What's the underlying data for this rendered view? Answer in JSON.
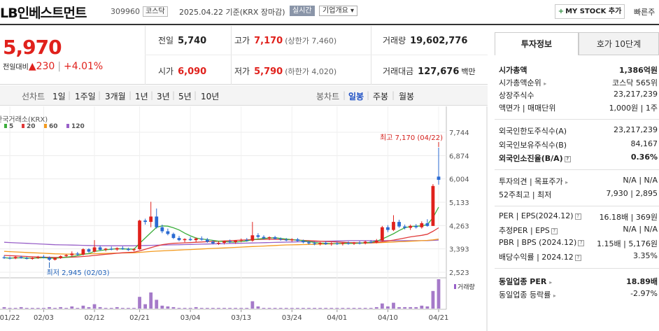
{
  "header": {
    "name": "LB인베스트먼트",
    "code": "309960",
    "market": "코스닥",
    "date_basis": "2025.04.22  기준(KRX 장마감)",
    "realtime": "실시간",
    "company_overview": "기업개요 ▾",
    "my_stock": "MY STOCK 추가",
    "quick_search": "빠른주"
  },
  "price": {
    "current": "5,970",
    "change_label": "전일대비",
    "change_value": "▲230",
    "change_pct": "+4.01%",
    "prev_close_label": "전일",
    "prev_close": "5,740",
    "high_label": "고가",
    "high": "7,170",
    "upper_limit": "(상한가 7,460)",
    "volume_label": "거래량",
    "volume": "19,602,776",
    "open_label": "시가",
    "open": "6,090",
    "low_label": "저가",
    "low": "5,790",
    "lower_limit": "(하한가 4,020)",
    "amount_label": "거래대금",
    "amount": "127,676",
    "amount_unit": "백만"
  },
  "toolbar": {
    "line_chart": "선차트",
    "periods": [
      "1일",
      "1주일",
      "3개월",
      "1년",
      "3년",
      "5년",
      "10년"
    ],
    "candle_chart": "봉차트",
    "candle_periods": [
      "일봉",
      "주봉",
      "월봉"
    ]
  },
  "chart_data": {
    "type": "candlestick",
    "title": "한국거래소(KRX)",
    "legend": [
      "5",
      "20",
      "60",
      "120"
    ],
    "ma_colors": {
      "5": "#3cae3c",
      "20": "#e03a3a",
      "60": "#f39a1f",
      "120": "#9860c8"
    },
    "y_ticks": [
      7744,
      6874,
      6004,
      5133,
      4263,
      3393,
      2523
    ],
    "ylim": [
      2523,
      7744
    ],
    "x_ticks": [
      "01/22",
      "02/03",
      "02/12",
      "02/21",
      "03/04",
      "03/13",
      "03/24",
      "04/01",
      "04/10",
      "04/21"
    ],
    "high_annotation": "최고 7,170 (04/22)",
    "low_annotation": "최저 2,945 (02/03)",
    "volume_label": "거래량",
    "candles": [
      {
        "o": 3080,
        "h": 3150,
        "l": 3020,
        "c": 3060
      },
      {
        "o": 3060,
        "h": 3110,
        "l": 3000,
        "c": 3040
      },
      {
        "o": 3040,
        "h": 3120,
        "l": 3010,
        "c": 3090
      },
      {
        "o": 3090,
        "h": 3140,
        "l": 3030,
        "c": 3050
      },
      {
        "o": 3050,
        "h": 3100,
        "l": 3000,
        "c": 3020
      },
      {
        "o": 3020,
        "h": 3080,
        "l": 2990,
        "c": 3060
      },
      {
        "o": 3060,
        "h": 3130,
        "l": 3020,
        "c": 3100
      },
      {
        "o": 3100,
        "h": 3160,
        "l": 3040,
        "c": 3070
      },
      {
        "o": 3070,
        "h": 3110,
        "l": 2945,
        "c": 2990
      },
      {
        "o": 2990,
        "h": 3080,
        "l": 2960,
        "c": 3050
      },
      {
        "o": 3050,
        "h": 3150,
        "l": 3020,
        "c": 3120
      },
      {
        "o": 3120,
        "h": 3200,
        "l": 3080,
        "c": 3160
      },
      {
        "o": 3160,
        "h": 3300,
        "l": 3100,
        "c": 3220
      },
      {
        "o": 3220,
        "h": 3280,
        "l": 3150,
        "c": 3180
      },
      {
        "o": 3180,
        "h": 3420,
        "l": 3150,
        "c": 3380
      },
      {
        "o": 3380,
        "h": 3420,
        "l": 3250,
        "c": 3290
      },
      {
        "o": 3290,
        "h": 3720,
        "l": 3260,
        "c": 3450
      },
      {
        "o": 3450,
        "h": 3520,
        "l": 3320,
        "c": 3360
      },
      {
        "o": 3360,
        "h": 3430,
        "l": 3300,
        "c": 3400
      },
      {
        "o": 3400,
        "h": 3480,
        "l": 3340,
        "c": 3370
      },
      {
        "o": 3370,
        "h": 3450,
        "l": 3320,
        "c": 3420
      },
      {
        "o": 3420,
        "h": 3490,
        "l": 3360,
        "c": 3390
      },
      {
        "o": 3390,
        "h": 3440,
        "l": 3320,
        "c": 3350
      },
      {
        "o": 3350,
        "h": 3420,
        "l": 3300,
        "c": 3380
      },
      {
        "o": 3380,
        "h": 4480,
        "l": 3360,
        "c": 4450
      },
      {
        "o": 4450,
        "h": 4520,
        "l": 4300,
        "c": 4400
      },
      {
        "o": 4400,
        "h": 5150,
        "l": 4200,
        "c": 4600
      },
      {
        "o": 4600,
        "h": 4900,
        "l": 4150,
        "c": 4200
      },
      {
        "o": 4200,
        "h": 4300,
        "l": 3980,
        "c": 4050
      },
      {
        "o": 4050,
        "h": 4150,
        "l": 3900,
        "c": 3950
      },
      {
        "o": 3950,
        "h": 4000,
        "l": 3760,
        "c": 3800
      },
      {
        "o": 3800,
        "h": 3880,
        "l": 3680,
        "c": 3720
      },
      {
        "o": 3720,
        "h": 3790,
        "l": 3640,
        "c": 3760
      },
      {
        "o": 3760,
        "h": 3840,
        "l": 3690,
        "c": 3720
      },
      {
        "o": 3720,
        "h": 3820,
        "l": 3650,
        "c": 3780
      },
      {
        "o": 3780,
        "h": 3860,
        "l": 3700,
        "c": 3740
      },
      {
        "o": 3740,
        "h": 3800,
        "l": 3620,
        "c": 3660
      },
      {
        "o": 3660,
        "h": 3720,
        "l": 3560,
        "c": 3600
      },
      {
        "o": 3600,
        "h": 3680,
        "l": 3540,
        "c": 3620
      },
      {
        "o": 3620,
        "h": 3700,
        "l": 3560,
        "c": 3680
      },
      {
        "o": 3680,
        "h": 3740,
        "l": 3600,
        "c": 3650
      },
      {
        "o": 3650,
        "h": 3720,
        "l": 3580,
        "c": 3700
      },
      {
        "o": 3700,
        "h": 3780,
        "l": 3640,
        "c": 3730
      },
      {
        "o": 3730,
        "h": 3800,
        "l": 3660,
        "c": 3700
      },
      {
        "o": 3700,
        "h": 4400,
        "l": 3660,
        "c": 3900
      },
      {
        "o": 3900,
        "h": 3980,
        "l": 3780,
        "c": 3840
      },
      {
        "o": 3840,
        "h": 3900,
        "l": 3740,
        "c": 3790
      },
      {
        "o": 3790,
        "h": 3860,
        "l": 3720,
        "c": 3830
      },
      {
        "o": 3830,
        "h": 3880,
        "l": 3740,
        "c": 3770
      },
      {
        "o": 3770,
        "h": 3820,
        "l": 3700,
        "c": 3740
      },
      {
        "o": 3740,
        "h": 3800,
        "l": 3680,
        "c": 3720
      },
      {
        "o": 3720,
        "h": 3790,
        "l": 3660,
        "c": 3750
      },
      {
        "o": 3750,
        "h": 3800,
        "l": 3660,
        "c": 3690
      },
      {
        "o": 3690,
        "h": 3740,
        "l": 3600,
        "c": 3640
      },
      {
        "o": 3640,
        "h": 3700,
        "l": 3560,
        "c": 3600
      },
      {
        "o": 3600,
        "h": 3660,
        "l": 3530,
        "c": 3580
      },
      {
        "o": 3580,
        "h": 3650,
        "l": 3520,
        "c": 3620
      },
      {
        "o": 3620,
        "h": 3680,
        "l": 3540,
        "c": 3570
      },
      {
        "o": 3570,
        "h": 3640,
        "l": 3510,
        "c": 3600
      },
      {
        "o": 3600,
        "h": 3660,
        "l": 3540,
        "c": 3580
      },
      {
        "o": 3580,
        "h": 3640,
        "l": 3520,
        "c": 3610
      },
      {
        "o": 3610,
        "h": 3670,
        "l": 3550,
        "c": 3590
      },
      {
        "o": 3590,
        "h": 3650,
        "l": 3540,
        "c": 3620
      },
      {
        "o": 3620,
        "h": 3680,
        "l": 3560,
        "c": 3600
      },
      {
        "o": 3600,
        "h": 3700,
        "l": 3560,
        "c": 3660
      },
      {
        "o": 3660,
        "h": 3720,
        "l": 3600,
        "c": 3640
      },
      {
        "o": 3640,
        "h": 3760,
        "l": 3600,
        "c": 3700
      },
      {
        "o": 3700,
        "h": 4250,
        "l": 3680,
        "c": 4200
      },
      {
        "o": 4200,
        "h": 4280,
        "l": 4020,
        "c": 4100
      },
      {
        "o": 4100,
        "h": 4650,
        "l": 4060,
        "c": 4400
      },
      {
        "o": 4400,
        "h": 4480,
        "l": 4180,
        "c": 4230
      },
      {
        "o": 4230,
        "h": 4300,
        "l": 4120,
        "c": 4180
      },
      {
        "o": 4180,
        "h": 4300,
        "l": 4100,
        "c": 4250
      },
      {
        "o": 4250,
        "h": 4320,
        "l": 4150,
        "c": 4200
      },
      {
        "o": 4200,
        "h": 4420,
        "l": 4150,
        "c": 4350
      },
      {
        "o": 4350,
        "h": 4500,
        "l": 4220,
        "c": 4250
      },
      {
        "o": 4250,
        "h": 5810,
        "l": 4250,
        "c": 5740
      },
      {
        "o": 6090,
        "h": 7170,
        "l": 5790,
        "c": 5970
      }
    ],
    "ma5": [
      3060,
      3050,
      3055,
      3060,
      3050,
      3045,
      3055,
      3065,
      3050,
      3045,
      3060,
      3080,
      3110,
      3140,
      3190,
      3220,
      3300,
      3330,
      3360,
      3380,
      3400,
      3390,
      3390,
      3380,
      3600,
      3800,
      4000,
      4200,
      4250,
      4240,
      4180,
      4100,
      3980,
      3880,
      3800,
      3760,
      3740,
      3710,
      3680,
      3670,
      3650,
      3650,
      3670,
      3690,
      3740,
      3760,
      3780,
      3800,
      3810,
      3780,
      3760,
      3740,
      3720,
      3700,
      3670,
      3630,
      3610,
      3600,
      3590,
      3590,
      3600,
      3600,
      3600,
      3610,
      3620,
      3640,
      3680,
      3760,
      3860,
      3960,
      4080,
      4180,
      4230,
      4240,
      4250,
      4300,
      4560,
      4950
    ],
    "ma20": [
      3150,
      3140,
      3130,
      3120,
      3110,
      3100,
      3090,
      3085,
      3080,
      3075,
      3075,
      3080,
      3085,
      3095,
      3110,
      3125,
      3150,
      3170,
      3190,
      3210,
      3230,
      3250,
      3260,
      3270,
      3320,
      3380,
      3440,
      3500,
      3550,
      3580,
      3600,
      3610,
      3620,
      3630,
      3640,
      3650,
      3660,
      3670,
      3680,
      3690,
      3700,
      3710,
      3720,
      3730,
      3740,
      3745,
      3750,
      3750,
      3750,
      3745,
      3740,
      3730,
      3720,
      3710,
      3700,
      3690,
      3680,
      3670,
      3660,
      3650,
      3640,
      3630,
      3625,
      3620,
      3620,
      3625,
      3635,
      3660,
      3690,
      3720,
      3760,
      3800,
      3840,
      3870,
      3900,
      3940,
      4050,
      4180
    ],
    "ma60": [
      3300,
      3290,
      3280,
      3270,
      3260,
      3250,
      3240,
      3230,
      3220,
      3210,
      3205,
      3200,
      3200,
      3200,
      3205,
      3210,
      3215,
      3220,
      3225,
      3230,
      3235,
      3240,
      3245,
      3250,
      3265,
      3280,
      3295,
      3310,
      3320,
      3330,
      3340,
      3350,
      3360,
      3370,
      3380,
      3390,
      3400,
      3410,
      3420,
      3430,
      3440,
      3450,
      3460,
      3470,
      3480,
      3490,
      3500,
      3510,
      3520,
      3530,
      3540,
      3545,
      3550,
      3555,
      3560,
      3565,
      3570,
      3575,
      3580,
      3585,
      3590,
      3595,
      3600,
      3605,
      3610,
      3615,
      3620,
      3630,
      3640,
      3650,
      3660,
      3670,
      3680,
      3690,
      3700,
      3710,
      3730,
      3760
    ],
    "ma120": [
      3640,
      3630,
      3620,
      3610,
      3600,
      3590,
      3580,
      3570,
      3560,
      3550,
      3545,
      3540,
      3535,
      3530,
      3525,
      3520,
      3515,
      3510,
      3510,
      3510,
      3510,
      3510,
      3510,
      3510,
      3515,
      3520,
      3525,
      3530,
      3535,
      3540,
      3545,
      3550,
      3555,
      3560,
      3565,
      3570,
      3575,
      3580,
      3585,
      3590,
      3595,
      3600,
      3605,
      3610,
      3615,
      3620,
      3625,
      3630,
      3635,
      3640,
      3645,
      3650,
      3655,
      3660,
      3665,
      3670,
      3675,
      3680,
      3685,
      3690,
      3695,
      3700,
      3700,
      3700,
      3700,
      3700,
      3700,
      3700,
      3700,
      3700,
      3700,
      3700,
      3700,
      3700,
      3700,
      3700,
      3710,
      3720
    ],
    "volume": [
      2,
      1,
      1,
      2,
      1,
      1,
      1,
      1,
      2,
      1,
      2,
      1,
      3,
      1,
      4,
      2,
      6,
      2,
      1,
      1,
      2,
      1,
      1,
      1,
      16,
      6,
      22,
      12,
      4,
      3,
      2,
      1,
      1,
      1,
      2,
      1,
      1,
      1,
      1,
      1,
      1,
      1,
      1,
      1,
      10,
      3,
      1,
      1,
      1,
      1,
      1,
      1,
      1,
      1,
      1,
      1,
      1,
      1,
      1,
      1,
      1,
      1,
      1,
      1,
      1,
      1,
      2,
      7,
      3,
      8,
      2,
      2,
      2,
      2,
      4,
      3,
      24,
      40
    ]
  },
  "investment": {
    "tab_active": "투자정보",
    "tab_other": "호가 10단계",
    "market_cap_label": "시가총액",
    "market_cap": "1,386억원",
    "market_cap_rank_label": "시가총액순위",
    "market_cap_rank": "코스닥 565위",
    "shares_label": "상장주식수",
    "shares": "23,217,239",
    "par_label": "액면가 | 매매단위",
    "par": "1,000원 | 1주",
    "foreign_limit_label": "외국인한도주식수(A)",
    "foreign_limit": "23,217,239",
    "foreign_hold_label": "외국인보유주식수(B)",
    "foreign_hold": "84,167",
    "foreign_ratio_label": "외국인소진율(B/A)",
    "foreign_ratio": "0.36%",
    "opinion_label": "투자의견 | 목표주가",
    "opinion": "N/A | N/A",
    "w52_label": "52주최고 | 최저",
    "w52": "7,930 | 2,895",
    "per_label": "PER | EPS(2024.12)",
    "per": "16.18배 | 369원",
    "est_per_label": "추정PER | EPS",
    "est_per": "N/A | N/A",
    "pbr_label": "PBR | BPS (2024.12)",
    "pbr": "1.15배 | 5,176원",
    "div_label": "배당수익률 | 2024.12",
    "div": "3.35%",
    "ind_per_label": "동일업종 PER",
    "ind_per": "18.89배",
    "ind_rate_label": "동일업종 등락률",
    "ind_rate": "-2.97%"
  }
}
